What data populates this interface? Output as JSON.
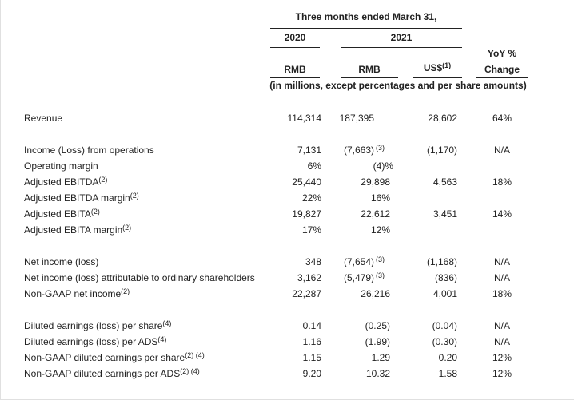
{
  "header": {
    "period": "Three months ended March 31,",
    "year_2020": "2020",
    "year_2021": "2021",
    "yoy_line1": "YoY %",
    "yoy_line2": "Change",
    "col_rmb_2020": "RMB",
    "col_rmb_2021": "RMB",
    "col_usd": "US$",
    "col_usd_note": "(1)",
    "units_note": "(in millions, except percentages and per share amounts)"
  },
  "rows": [
    {
      "label": "Revenue",
      "label_note": "",
      "v2020": "114,314",
      "rmb2021": "187,395",
      "rmb2021_note": "",
      "usd": "28,602",
      "yoy": "64%"
    },
    {
      "label": "Income (Loss) from operations",
      "label_note": "",
      "v2020": "7,131",
      "rmb2021": "(7,663)",
      "rmb2021_note": "(3)",
      "usd": "(1,170)",
      "yoy": "N/A"
    },
    {
      "label": "Operating margin",
      "label_note": "",
      "v2020": "6%",
      "rmb2021": "(4)%",
      "rmb2021_note": "",
      "usd": "",
      "yoy": ""
    },
    {
      "label": "Adjusted EBITDA",
      "label_note": "(2)",
      "v2020": "25,440",
      "rmb2021": "29,898",
      "rmb2021_note": "",
      "usd": "4,563",
      "yoy": "18%"
    },
    {
      "label": "Adjusted EBITDA margin",
      "label_note": "(2)",
      "v2020": "22%",
      "rmb2021": "16%",
      "rmb2021_note": "",
      "usd": "",
      "yoy": ""
    },
    {
      "label": "Adjusted EBITA",
      "label_note": "(2)",
      "v2020": "19,827",
      "rmb2021": "22,612",
      "rmb2021_note": "",
      "usd": "3,451",
      "yoy": "14%"
    },
    {
      "label": "Adjusted EBITA margin",
      "label_note": "(2)",
      "v2020": "17%",
      "rmb2021": "12%",
      "rmb2021_note": "",
      "usd": "",
      "yoy": ""
    },
    {
      "label": "Net income (loss)",
      "label_note": "",
      "v2020": "348",
      "rmb2021": "(7,654)",
      "rmb2021_note": "(3)",
      "usd": "(1,168)",
      "yoy": "N/A"
    },
    {
      "label": "Net income (loss) attributable to ordinary shareholders",
      "label_note": "",
      "v2020": "3,162",
      "rmb2021": "(5,479)",
      "rmb2021_note": "(3)",
      "usd": "(836)",
      "yoy": "N/A"
    },
    {
      "label": "Non-GAAP net income",
      "label_note": "(2)",
      "v2020": "22,287",
      "rmb2021": "26,216",
      "rmb2021_note": "",
      "usd": "4,001",
      "yoy": "18%"
    },
    {
      "label": "Diluted earnings (loss) per share",
      "label_note": "(4)",
      "v2020": "0.14",
      "rmb2021": "(0.25)",
      "rmb2021_note": "",
      "usd": "(0.04)",
      "yoy": "N/A"
    },
    {
      "label": "Diluted earnings (loss) per ADS",
      "label_note": "(4)",
      "v2020": "1.16",
      "rmb2021": "(1.99)",
      "rmb2021_note": "",
      "usd": "(0.30)",
      "yoy": "N/A"
    },
    {
      "label": "Non-GAAP diluted earnings per share",
      "label_note": "(2) (4)",
      "v2020": "1.15",
      "rmb2021": "1.29",
      "rmb2021_note": "",
      "usd": "0.20",
      "yoy": "12%"
    },
    {
      "label": "Non-GAAP diluted earnings per ADS",
      "label_note": "(2) (4)",
      "v2020": "9.20",
      "rmb2021": "10.32",
      "rmb2021_note": "",
      "usd": "1.58",
      "yoy": "12%"
    }
  ]
}
